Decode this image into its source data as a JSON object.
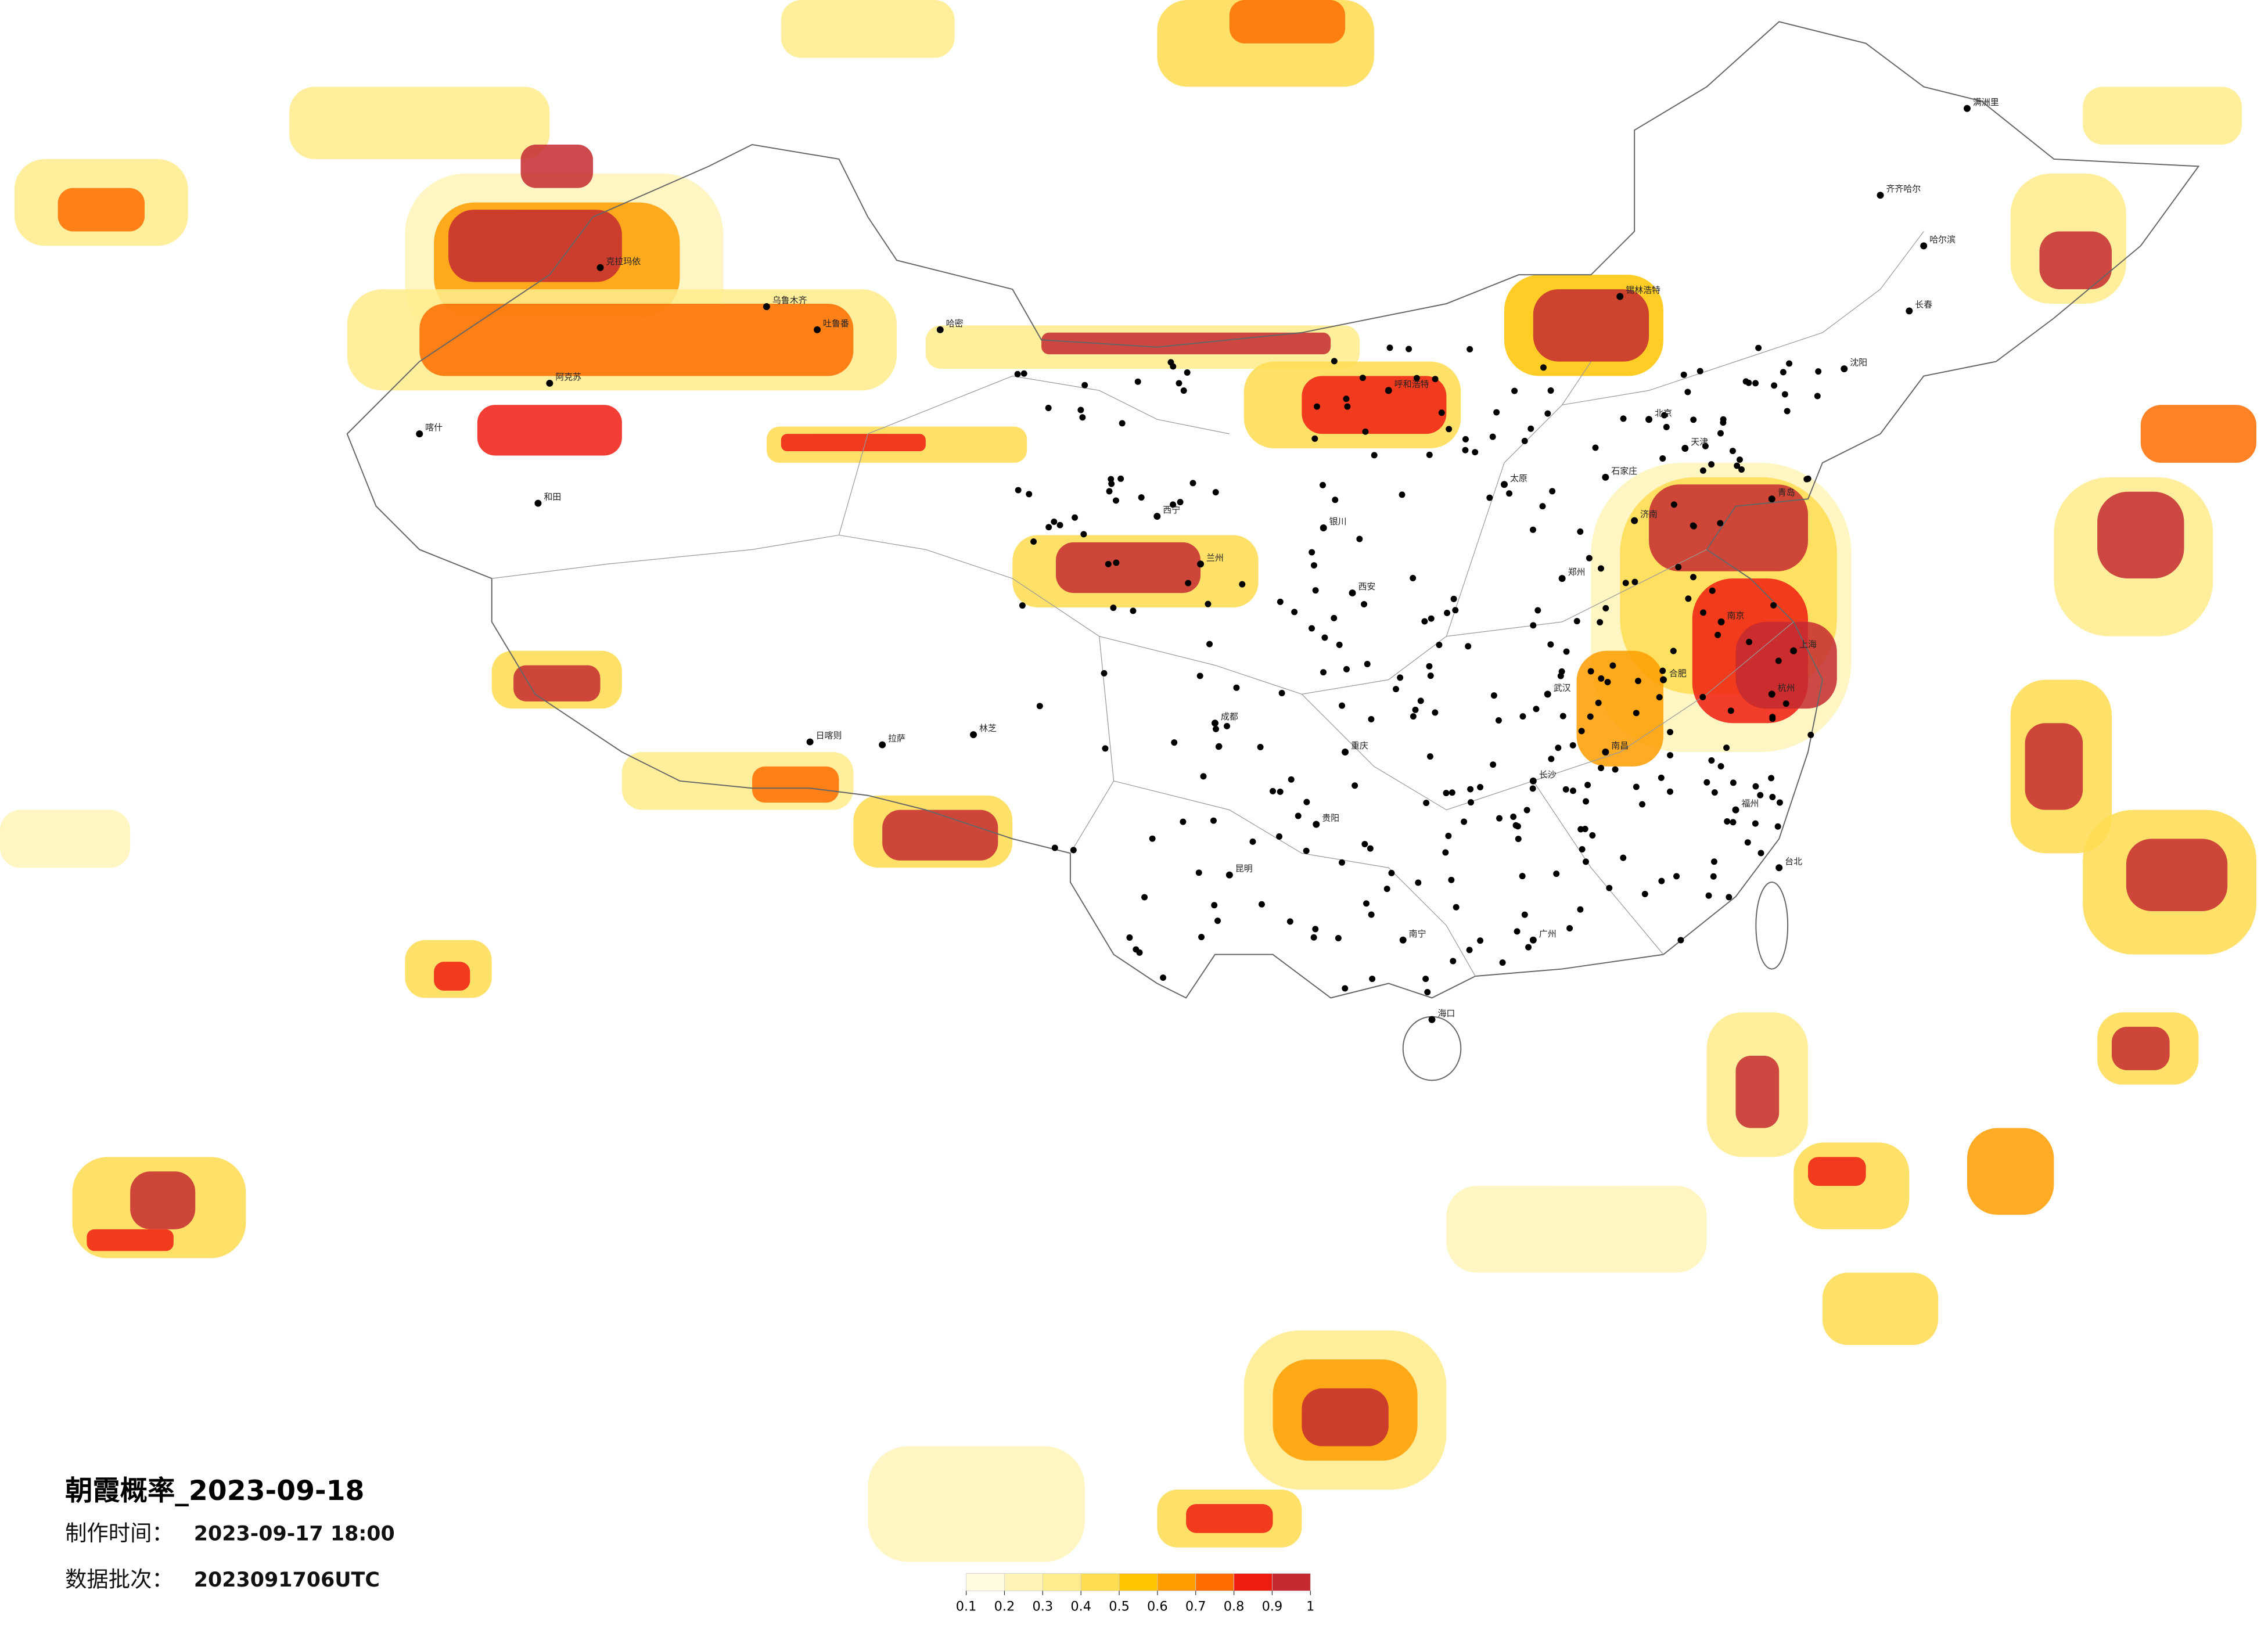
{
  "map": {
    "title": "朝霞概率_2023-09-18",
    "info": [
      {
        "label": "制作时间：",
        "value": "2023-09-17 18:00"
      },
      {
        "label": "数据批次：",
        "value": "2023091706UTC"
      }
    ],
    "colorbar": {
      "ticks": [
        0.1,
        0.2,
        0.3,
        0.4,
        0.5,
        0.6,
        0.7,
        0.8,
        0.9,
        1
      ],
      "colors": [
        "#fffbe0",
        "#fff4b8",
        "#ffec8c",
        "#ffdc50",
        "#ffc400",
        "#ff9c00",
        "#ff6c00",
        "#f01c10",
        "#c42a30"
      ]
    },
    "cities": [
      "克拉玛依",
      "乌鲁木齐",
      "吐鲁番",
      "哈密",
      "阿克苏",
      "喀什",
      "和田",
      "拉萨",
      "日喀则",
      "林芝",
      "西宁",
      "兰州",
      "银川",
      "呼和浩特",
      "北京",
      "天津",
      "石家庄",
      "太原",
      "郑州",
      "西安",
      "成都",
      "重庆",
      "昆明",
      "贵阳",
      "南宁",
      "武汉",
      "长沙",
      "南昌",
      "合肥",
      "南京",
      "上海",
      "杭州",
      "福州",
      "广州",
      "海口",
      "沈阳",
      "长春",
      "哈尔滨",
      "济南",
      "青岛",
      "台北",
      "齐齐哈尔",
      "满洲里",
      "锡林浩特"
    ]
  }
}
